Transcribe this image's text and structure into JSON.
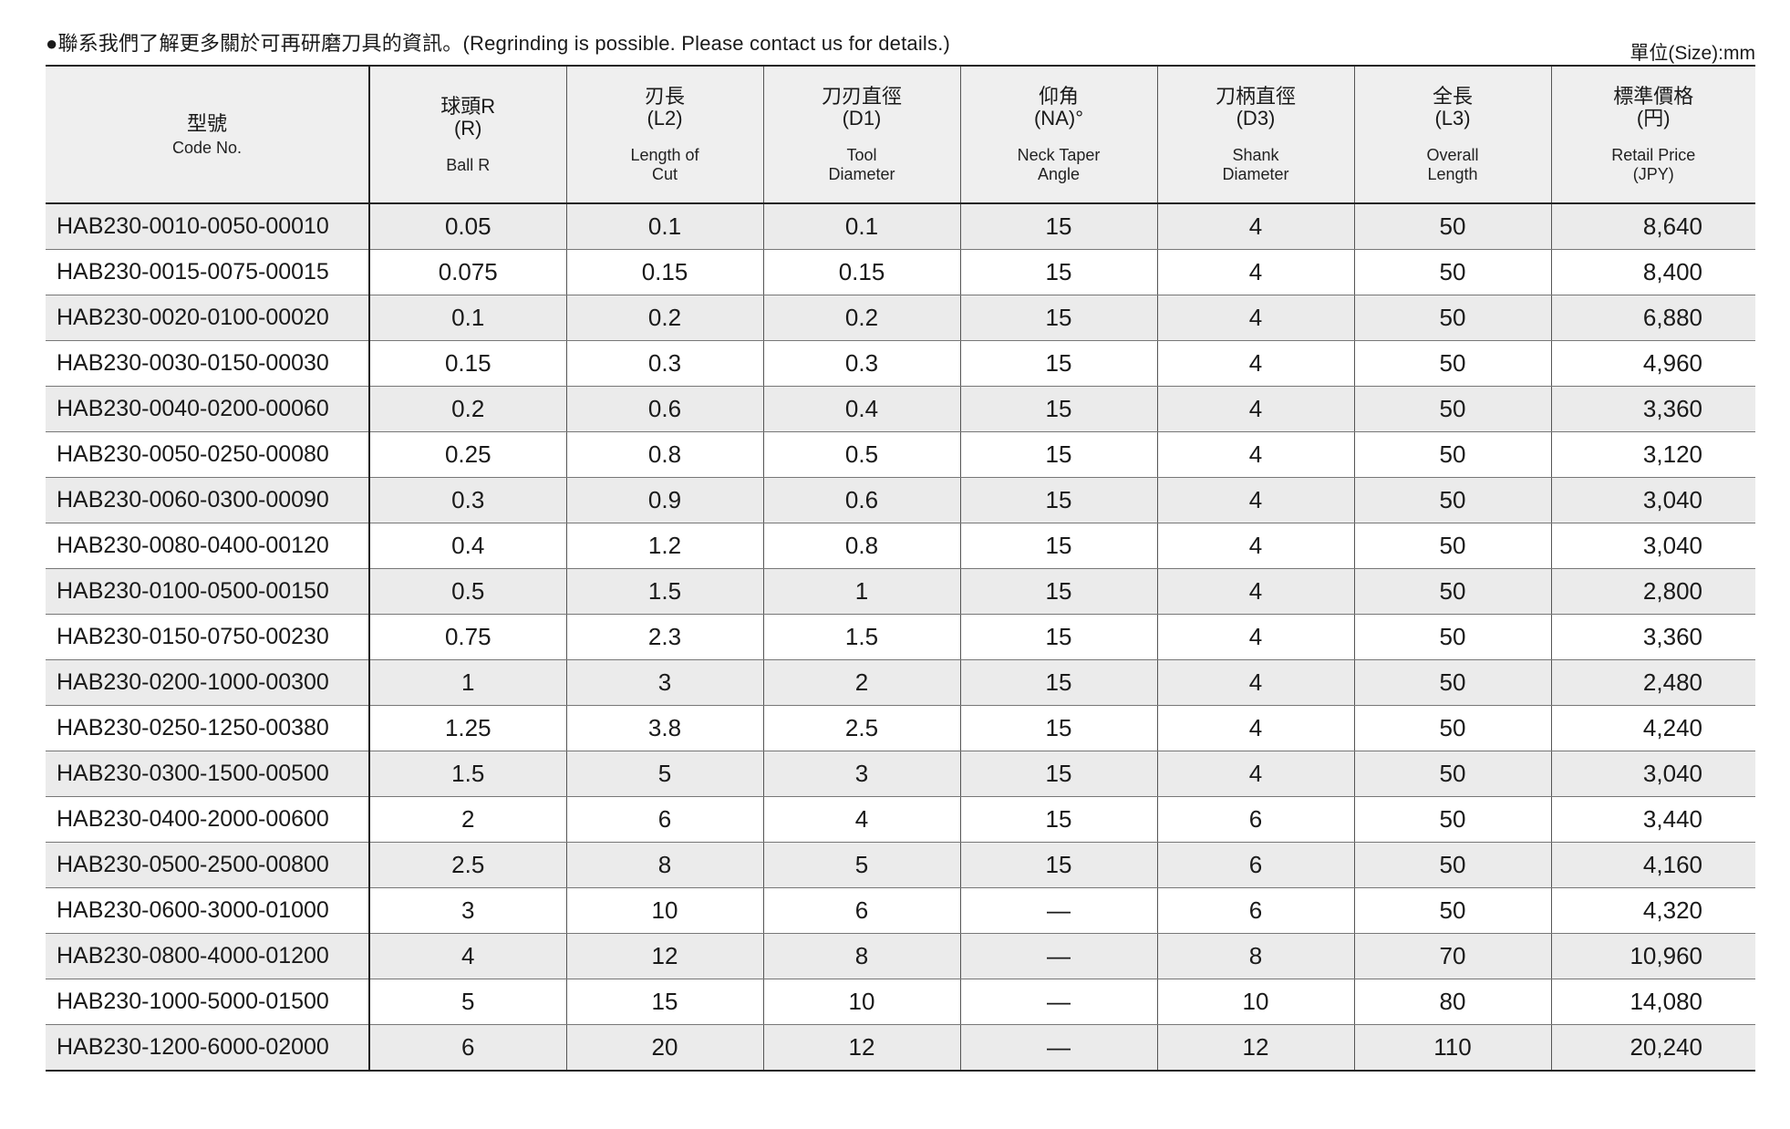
{
  "note": "●聯系我們了解更多關於可再研磨刀具的資訊。(Regrinding is possible. Please contact us for details.)",
  "unit": "單位(Size):mm",
  "columns": [
    {
      "zh": "型號",
      "sym": "",
      "en": "Code No."
    },
    {
      "zh": "球頭R",
      "sym": "(R)",
      "en": "Ball R"
    },
    {
      "zh": "刃長",
      "sym": "(L2)",
      "en": "Length of Cut"
    },
    {
      "zh": "刀刃直徑",
      "sym": "(D1)",
      "en": "Tool Diameter"
    },
    {
      "zh": "仰角",
      "sym": "(NA)°",
      "en": "Neck Taper Angle"
    },
    {
      "zh": "刀柄直徑",
      "sym": "(D3)",
      "en": "Shank Diameter"
    },
    {
      "zh": "全長",
      "sym": "(L3)",
      "en": "Overall Length"
    },
    {
      "zh": "標準價格",
      "sym": "(円)",
      "en": "Retail Price (JPY)"
    }
  ],
  "rows": [
    [
      "HAB230-0010-0050-00010",
      "0.05",
      "0.1",
      "0.1",
      "15",
      "4",
      "50",
      "8,640"
    ],
    [
      "HAB230-0015-0075-00015",
      "0.075",
      "0.15",
      "0.15",
      "15",
      "4",
      "50",
      "8,400"
    ],
    [
      "HAB230-0020-0100-00020",
      "0.1",
      "0.2",
      "0.2",
      "15",
      "4",
      "50",
      "6,880"
    ],
    [
      "HAB230-0030-0150-00030",
      "0.15",
      "0.3",
      "0.3",
      "15",
      "4",
      "50",
      "4,960"
    ],
    [
      "HAB230-0040-0200-00060",
      "0.2",
      "0.6",
      "0.4",
      "15",
      "4",
      "50",
      "3,360"
    ],
    [
      "HAB230-0050-0250-00080",
      "0.25",
      "0.8",
      "0.5",
      "15",
      "4",
      "50",
      "3,120"
    ],
    [
      "HAB230-0060-0300-00090",
      "0.3",
      "0.9",
      "0.6",
      "15",
      "4",
      "50",
      "3,040"
    ],
    [
      "HAB230-0080-0400-00120",
      "0.4",
      "1.2",
      "0.8",
      "15",
      "4",
      "50",
      "3,040"
    ],
    [
      "HAB230-0100-0500-00150",
      "0.5",
      "1.5",
      "1",
      "15",
      "4",
      "50",
      "2,800"
    ],
    [
      "HAB230-0150-0750-00230",
      "0.75",
      "2.3",
      "1.5",
      "15",
      "4",
      "50",
      "3,360"
    ],
    [
      "HAB230-0200-1000-00300",
      "1",
      "3",
      "2",
      "15",
      "4",
      "50",
      "2,480"
    ],
    [
      "HAB230-0250-1250-00380",
      "1.25",
      "3.8",
      "2.5",
      "15",
      "4",
      "50",
      "4,240"
    ],
    [
      "HAB230-0300-1500-00500",
      "1.5",
      "5",
      "3",
      "15",
      "4",
      "50",
      "3,040"
    ],
    [
      "HAB230-0400-2000-00600",
      "2",
      "6",
      "4",
      "15",
      "6",
      "50",
      "3,440"
    ],
    [
      "HAB230-0500-2500-00800",
      "2.5",
      "8",
      "5",
      "15",
      "6",
      "50",
      "4,160"
    ],
    [
      "HAB230-0600-3000-01000",
      "3",
      "10",
      "6",
      "—",
      "6",
      "50",
      "4,320"
    ],
    [
      "HAB230-0800-4000-01200",
      "4",
      "12",
      "8",
      "—",
      "8",
      "70",
      "10,960"
    ],
    [
      "HAB230-1000-5000-01500",
      "5",
      "15",
      "10",
      "—",
      "10",
      "80",
      "14,080"
    ],
    [
      "HAB230-1200-6000-02000",
      "6",
      "20",
      "12",
      "—",
      "12",
      "110",
      "20,240"
    ]
  ]
}
